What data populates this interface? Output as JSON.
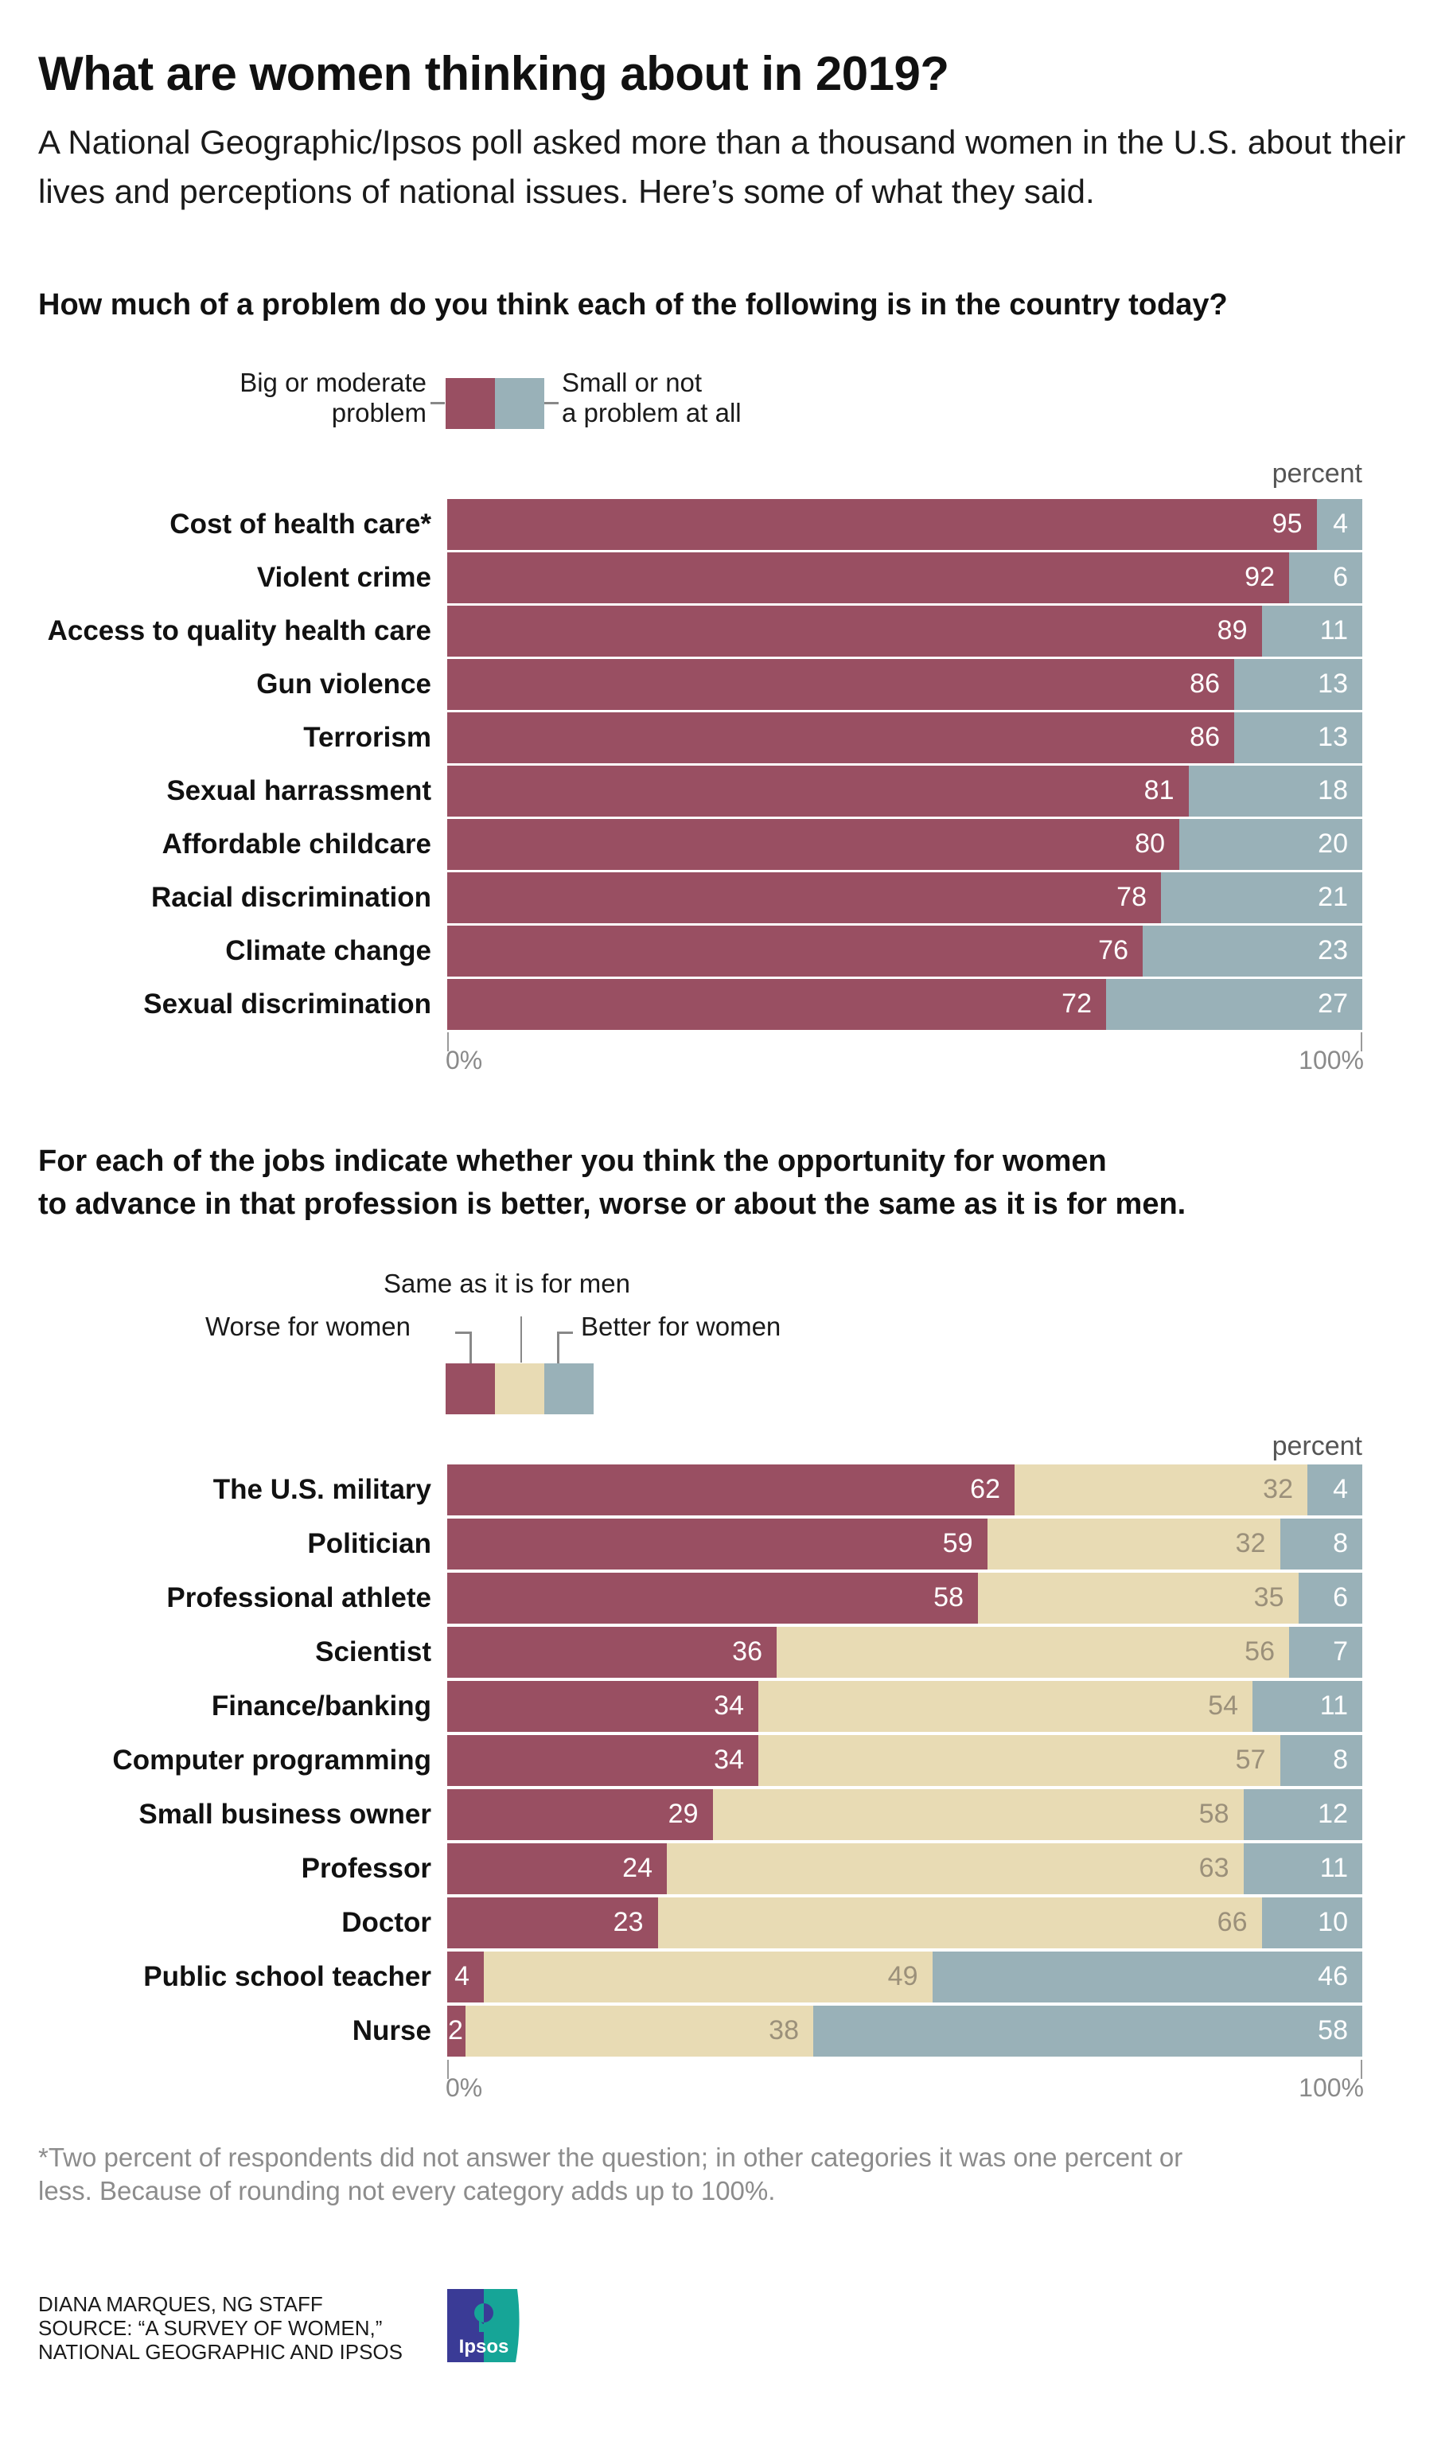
{
  "header": {
    "title": "What are women thinking about in 2019?",
    "subtitle": "A National Geographic/Ipsos poll asked more than a thousand women in the U.S. about their lives and perceptions of national issues. Here’s some of what they said."
  },
  "colors": {
    "worse_big": "#994f62",
    "same": "#e8dbb4",
    "better_small": "#99b1b8",
    "value_on_dark": "#ffffff",
    "value_on_same": "#9b907a"
  },
  "chart1": {
    "question": "How much of a problem do you think each of the following is in the country today?",
    "legend": {
      "big": "Big or moderate\nproblem",
      "small": "Small or not\na problem at all"
    },
    "percent_label": "percent",
    "axis_min_label": "0%",
    "axis_max_label": "100%"
  },
  "chart2": {
    "question_line1": "For each of the jobs indicate whether you think the opportunity for women",
    "question_line2": "to advance in that profession is better, worse or about the same as it is for men.",
    "legend": {
      "worse": "Worse for women",
      "same": "Same as it is for men",
      "better": "Better for women"
    },
    "percent_label": "percent",
    "axis_min_label": "0%",
    "axis_max_label": "100%"
  },
  "footnote": "*Two percent of respondents did not answer the question; in other categories it was one percent or less. Because of rounding not every category adds up to 100%.",
  "credits": {
    "line1": "DIANA MARQUES, NG STAFF",
    "line2": "SOURCE: “A SURVEY OF WOMEN,”",
    "line3": "NATIONAL GEOGRAPHIC AND IPSOS",
    "logo_text": "Ipsos"
  },
  "chart_data": [
    {
      "type": "bar",
      "orientation": "horizontal",
      "stacked": true,
      "title": "How much of a problem do you think each of the following is in the country today?",
      "xlabel": "percent",
      "ylabel": "",
      "xlim": [
        0,
        100
      ],
      "x_ticks": [
        "0%",
        "100%"
      ],
      "grid": false,
      "legend_position": "top-left",
      "categories": [
        "Cost of health care*",
        "Violent crime",
        "Access to quality health care",
        "Gun violence",
        "Terrorism",
        "Sexual harrassment",
        "Affordable childcare",
        "Racial discrimination",
        "Climate change",
        "Sexual discrimination"
      ],
      "series": [
        {
          "name": "Big or moderate problem",
          "values": [
            95,
            92,
            89,
            86,
            86,
            81,
            80,
            78,
            76,
            72
          ]
        },
        {
          "name": "Small or not a problem at all",
          "values": [
            4,
            6,
            11,
            13,
            13,
            18,
            20,
            21,
            23,
            27
          ]
        }
      ]
    },
    {
      "type": "bar",
      "orientation": "horizontal",
      "stacked": true,
      "title": "For each of the jobs indicate whether you think the opportunity for women to advance in that profession is better, worse or about the same as it is for men.",
      "xlabel": "percent",
      "ylabel": "",
      "xlim": [
        0,
        100
      ],
      "x_ticks": [
        "0%",
        "100%"
      ],
      "grid": false,
      "legend_position": "top-left",
      "categories": [
        "The U.S. military",
        "Politician",
        "Professional athlete",
        "Scientist",
        "Finance/banking",
        "Computer programming",
        "Small business owner",
        "Professor",
        "Doctor",
        "Public school teacher",
        "Nurse"
      ],
      "series": [
        {
          "name": "Worse for women",
          "values": [
            62,
            59,
            58,
            36,
            34,
            34,
            29,
            24,
            23,
            4,
            2
          ]
        },
        {
          "name": "Same as it is for men",
          "values": [
            32,
            32,
            35,
            56,
            54,
            57,
            58,
            63,
            66,
            49,
            38
          ]
        },
        {
          "name": "Better for women",
          "values": [
            4,
            8,
            6,
            7,
            11,
            8,
            12,
            11,
            10,
            46,
            58
          ]
        }
      ]
    }
  ]
}
